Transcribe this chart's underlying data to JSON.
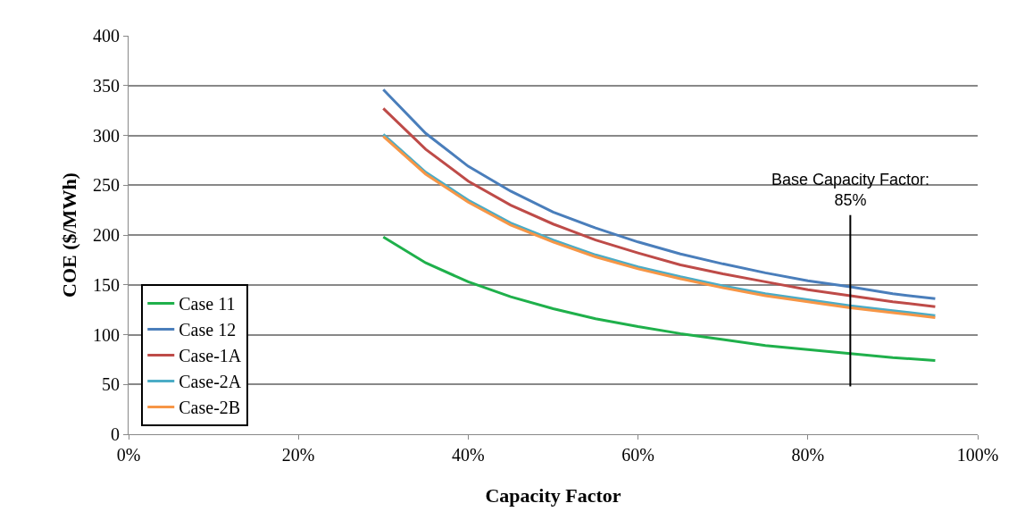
{
  "chart_data": {
    "type": "line",
    "xlabel": "Capacity Factor",
    "ylabel": "COE ($/MWh)",
    "x": [
      30,
      35,
      40,
      45,
      50,
      55,
      60,
      65,
      70,
      75,
      80,
      85,
      90,
      95
    ],
    "series": [
      {
        "name": "Case 11",
        "color": "#1fb04b",
        "values": [
          198,
          172,
          153,
          138,
          126,
          116,
          108,
          101,
          95,
          89,
          85,
          81,
          77,
          74
        ]
      },
      {
        "name": "Case 12",
        "color": "#4a7ebb",
        "values": [
          346,
          302,
          269,
          244,
          223,
          207,
          193,
          181,
          171,
          162,
          154,
          148,
          141,
          136
        ]
      },
      {
        "name": "Case-1A",
        "color": "#be4b48",
        "values": [
          327,
          286,
          254,
          230,
          211,
          195,
          182,
          170,
          161,
          153,
          145,
          139,
          133,
          128
        ]
      },
      {
        "name": "Case-2A",
        "color": "#4bacc6",
        "values": [
          301,
          263,
          235,
          212,
          195,
          180,
          168,
          158,
          149,
          141,
          135,
          129,
          124,
          119
        ]
      },
      {
        "name": "Case-2B",
        "color": "#f79646",
        "values": [
          299,
          261,
          233,
          210,
          193,
          178,
          166,
          156,
          147,
          139,
          133,
          127,
          122,
          117
        ]
      }
    ],
    "xlim": [
      0,
      100
    ],
    "xticks": [
      {
        "value": 0,
        "label": "0%"
      },
      {
        "value": 20,
        "label": "20%"
      },
      {
        "value": 40,
        "label": "40%"
      },
      {
        "value": 60,
        "label": "60%"
      },
      {
        "value": 80,
        "label": "80%"
      },
      {
        "value": 100,
        "label": "100%"
      }
    ],
    "ylim": [
      0,
      400
    ],
    "yticks": [
      0,
      50,
      100,
      150,
      200,
      250,
      300,
      350,
      400
    ],
    "grid": "y",
    "legend": "bottom left",
    "marker": "none",
    "line_style": "solid",
    "ref_lines": [
      {
        "axis": "x",
        "value": 85,
        "label": "Base Capacity Factor:\n85%",
        "color": "#000000"
      }
    ]
  }
}
